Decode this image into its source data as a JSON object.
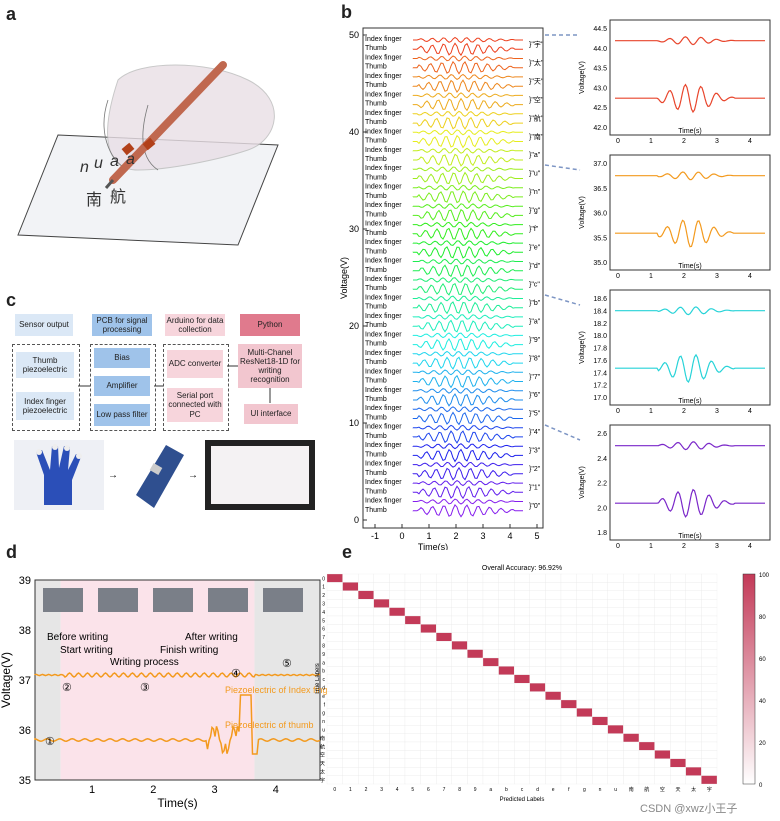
{
  "panels": {
    "a": "a",
    "b": "b",
    "c": "c",
    "d": "d",
    "e": "e"
  },
  "panel_a": {
    "handwriting": [
      "n",
      "u",
      "a",
      "a"
    ],
    "chinese": "南",
    "chinese2": "航"
  },
  "panel_b": {
    "ylabel": "Voltage(V)",
    "xlabel": "Time(s)",
    "yticks": [
      "0",
      "10",
      "20",
      "30",
      "40",
      "50"
    ],
    "xticks": [
      "-1",
      "0",
      "1",
      "2",
      "3",
      "4",
      "5"
    ],
    "rows": [
      {
        "char": "\"宇\"",
        "labels": [
          "Index finger",
          "Thumb"
        ]
      },
      {
        "char": "\"太\"",
        "labels": [
          "Index finger",
          "Thumb"
        ]
      },
      {
        "char": "\"天\"",
        "labels": [
          "Index finger",
          "Thumb"
        ]
      },
      {
        "char": "\"空\"",
        "labels": [
          "Index finger",
          "Thumb"
        ]
      },
      {
        "char": "\"航\"",
        "labels": [
          "Index finger",
          "Thumb"
        ]
      },
      {
        "char": "\"南\"",
        "labels": [
          "Index finger",
          "Thumb"
        ]
      },
      {
        "char": "\"a\"",
        "labels": [
          "Index finger",
          "Thumb"
        ]
      },
      {
        "char": "\"u\"",
        "labels": [
          "Index finger",
          "Thumb"
        ]
      },
      {
        "char": "\"n\"",
        "labels": [
          "Index finger",
          "Thumb"
        ]
      },
      {
        "char": "\"g\"",
        "labels": [
          "Index finger",
          "Thumb"
        ]
      },
      {
        "char": "\"f\"",
        "labels": [
          "Index finger",
          "Thumb"
        ]
      },
      {
        "char": "\"e\"",
        "labels": [
          "Index finger",
          "Thumb"
        ]
      },
      {
        "char": "\"d\"",
        "labels": [
          "Index finger",
          "Thumb"
        ]
      },
      {
        "char": "\"c\"",
        "labels": [
          "Index finger",
          "Thumb"
        ]
      },
      {
        "char": "\"b\"",
        "labels": [
          "Index finger",
          "Thumb"
        ]
      },
      {
        "char": "\"a\"",
        "labels": [
          "Index finger",
          "Thumb"
        ]
      },
      {
        "char": "\"9\"",
        "labels": [
          "Index finger",
          "Thumb"
        ]
      },
      {
        "char": "\"8\"",
        "labels": [
          "Index finger",
          "Thumb"
        ]
      },
      {
        "char": "\"7\"",
        "labels": [
          "Index finger",
          "Thumb"
        ]
      },
      {
        "char": "\"6\"",
        "labels": [
          "Index finger",
          "Thumb"
        ]
      },
      {
        "char": "\"5\"",
        "labels": [
          "Index finger",
          "Thumb"
        ]
      },
      {
        "char": "\"4\"",
        "labels": [
          "Index finger",
          "Thumb"
        ]
      },
      {
        "char": "\"3\"",
        "labels": [
          "Index finger",
          "Thumb"
        ]
      },
      {
        "char": "\"2\"",
        "labels": [
          "Index finger",
          "Thumb"
        ]
      },
      {
        "char": "\"1\"",
        "labels": [
          "Index finger",
          "Thumb"
        ]
      },
      {
        "char": "\"0\"",
        "labels": [
          "Index finger",
          "Thumb"
        ]
      }
    ],
    "zooms": [
      {
        "yticks": [
          "42.0",
          "42.5",
          "43.0",
          "43.5",
          "44.0",
          "44.5"
        ],
        "xticks": [
          "0",
          "1",
          "2",
          "3",
          "4"
        ],
        "xlabel": "Time(s)",
        "ylabel": "Voltage(V)",
        "color": "#e8452c"
      },
      {
        "yticks": [
          "35.0",
          "35.5",
          "36.0",
          "36.5",
          "37.0"
        ],
        "xticks": [
          "0",
          "1",
          "2",
          "3",
          "4"
        ],
        "xlabel": "Time(s)",
        "ylabel": "Voltage(V)",
        "color": "#f39a1e"
      },
      {
        "yticks": [
          "17.0",
          "17.2",
          "17.4",
          "17.6",
          "17.8",
          "18.0",
          "18.2",
          "18.4",
          "18.6"
        ],
        "xticks": [
          "0",
          "1",
          "2",
          "3",
          "4"
        ],
        "xlabel": "Time(s)",
        "ylabel": "Voltage(V)",
        "color": "#27d3d8"
      },
      {
        "yticks": [
          "1.8",
          "2.0",
          "2.2",
          "2.4",
          "2.6"
        ],
        "xticks": [
          "0",
          "1",
          "2",
          "3",
          "4"
        ],
        "xlabel": "Time(s)",
        "ylabel": "Voltage(V)",
        "color": "#7a27c9"
      }
    ]
  },
  "panel_c": {
    "headers": [
      "Sensor output",
      "PCB for signal processing",
      "Arduino for data collection",
      "Python"
    ],
    "sensors": [
      "Thumb piezoelectric",
      "Index finger piezoelectric"
    ],
    "pcb": [
      "Bias",
      "Amplifier",
      "Low pass filter"
    ],
    "arduino": [
      "ADC converter",
      "Serial port connected with PC"
    ],
    "python": [
      "Multi-Chanel ResNet18-1D for writing recognition",
      "UI interface"
    ]
  },
  "panel_d": {
    "ylabel": "Voltage(V)",
    "xlabel": "Time(s)",
    "yticks": [
      "35",
      "36",
      "37",
      "38",
      "39"
    ],
    "xticks": [
      "1",
      "2",
      "3",
      "4"
    ],
    "annotations": [
      "Before writing",
      "Start writing",
      "Writing process",
      "After writing",
      "Finish writing"
    ],
    "legend": [
      "Piezoelectric of Index finger",
      "Piezoelectric of thumb"
    ],
    "steps": [
      "①",
      "②",
      "③",
      "④",
      "⑤"
    ]
  },
  "panel_e": {
    "title": "Overall Accuracy: 96.92%",
    "xlabel": "Predicted Labels",
    "ylabel": "True Labels",
    "labels": [
      "0",
      "1",
      "2",
      "3",
      "4",
      "5",
      "6",
      "7",
      "8",
      "9",
      "a",
      "b",
      "c",
      "d",
      "e",
      "f",
      "g",
      "n",
      "u",
      "南",
      "航",
      "空",
      "天",
      "太",
      "宇"
    ],
    "colorbar": [
      "0",
      "20",
      "40",
      "60",
      "80",
      "100"
    ]
  },
  "watermark": "CSDN @xwz小王子",
  "chart_data": [
    {
      "type": "line",
      "xlabel": "Time(s)",
      "ylabel": "Voltage(V)",
      "ylim": [
        0,
        50
      ],
      "xlim": [
        -1,
        5
      ]
    },
    {
      "type": "line",
      "xlabel": "Time(s)",
      "ylabel": "Voltage(V)",
      "ylim": [
        35,
        39
      ],
      "xlim": [
        0,
        4.6
      ],
      "series": [
        {
          "name": "Piezoelectric of Index finger",
          "level": 37.1
        },
        {
          "name": "Piezoelectric of thumb",
          "level": 35.8
        }
      ]
    },
    {
      "type": "heatmap",
      "title": "Overall Accuracy: 96.92%",
      "xlabel": "Predicted Labels",
      "ylabel": "True Labels",
      "categories": 25,
      "zlim": [
        0,
        100
      ]
    }
  ]
}
